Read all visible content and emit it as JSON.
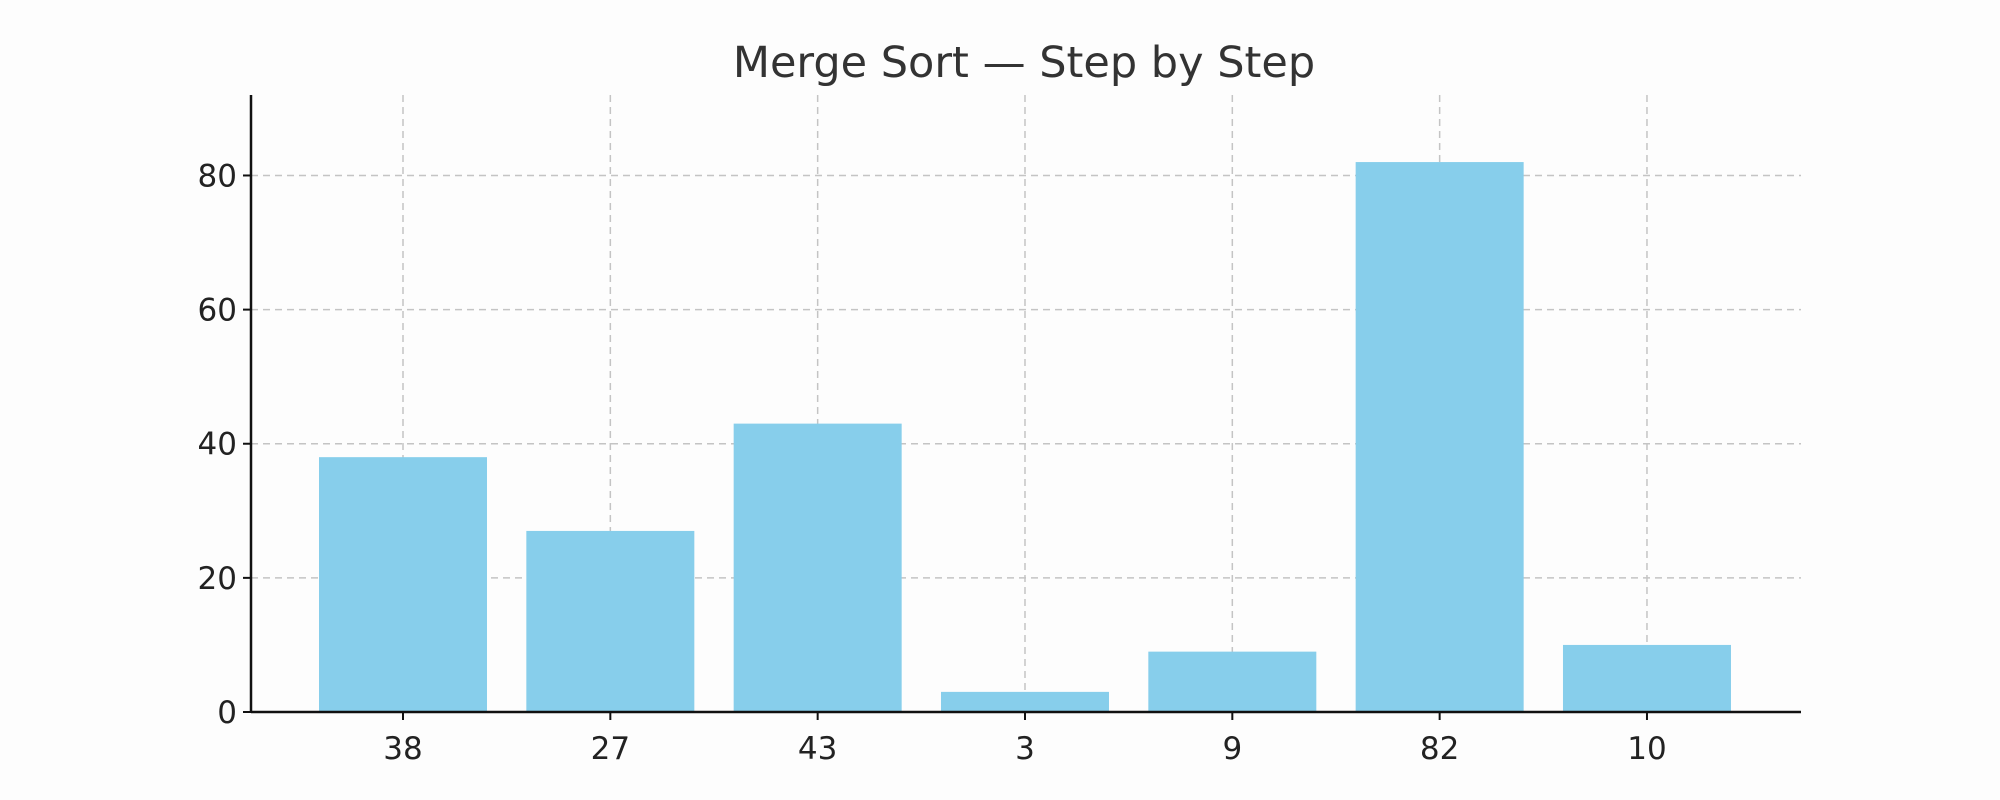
{
  "chart_data": {
    "type": "bar",
    "title": "Merge Sort — Step by Step",
    "xlabel": "",
    "ylabel": "",
    "categories": [
      "38",
      "27",
      "43",
      "3",
      "9",
      "82",
      "10"
    ],
    "values": [
      38,
      27,
      43,
      3,
      9,
      82,
      10
    ],
    "bar_color": "#87CEEB",
    "ylim": [
      0,
      92
    ],
    "yticks": [
      0,
      20,
      40,
      60,
      80
    ],
    "grid": true,
    "legend": "none"
  }
}
